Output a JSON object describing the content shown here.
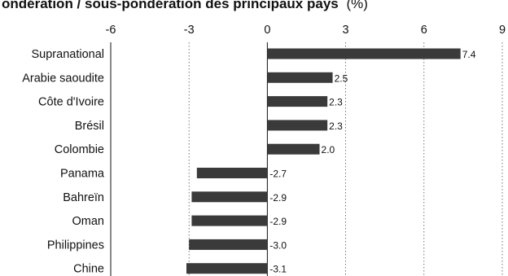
{
  "chart_data": {
    "type": "bar",
    "orientation": "horizontal",
    "title": "ondération / sous-pondération des principaux pays",
    "title_unit": "(%)",
    "xlabel": "",
    "ylabel": "",
    "xlim": [
      -6,
      9
    ],
    "xticks": [
      -6,
      -3,
      0,
      3,
      6,
      9
    ],
    "grid": "vertical dotted",
    "categories": [
      "Supranational",
      "Arabie saoudite",
      "Côte d'Ivoire",
      "Brésil",
      "Colombie",
      "Panama",
      "Bahreïn",
      "Oman",
      "Philippines",
      "Chine"
    ],
    "values": [
      7.4,
      2.5,
      2.3,
      2.3,
      2.0,
      -2.7,
      -2.9,
      -2.9,
      -3.0,
      -3.1
    ],
    "value_labels": [
      "7.4",
      "2.5",
      "2.3",
      "2.3",
      "2.0",
      "-2.7",
      "-2.9",
      "-2.9",
      "-3.0",
      "-3.1"
    ],
    "bar_color": "#3a3a3a"
  }
}
